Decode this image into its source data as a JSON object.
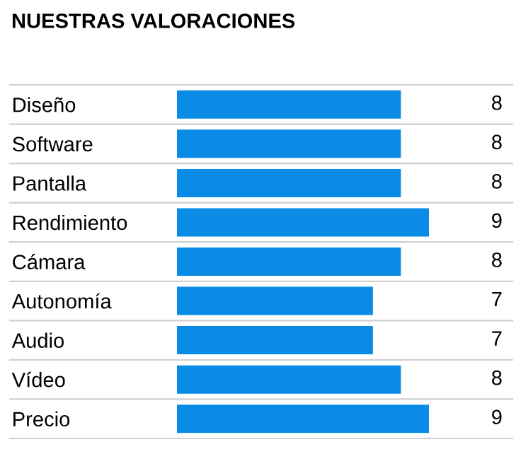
{
  "chart_data": {
    "type": "bar",
    "orientation": "horizontal",
    "title": "NUESTRAS VALORACIONES",
    "categories": [
      "Diseño",
      "Software",
      "Pantalla",
      "Rendimiento",
      "Cámara",
      "Autonomía",
      "Audio",
      "Vídeo",
      "Precio"
    ],
    "values": [
      8,
      8,
      8,
      9,
      8,
      7,
      7,
      8,
      9
    ],
    "color": "#0a8ce6",
    "data_labels": true,
    "grid": "y",
    "legend": false
  }
}
